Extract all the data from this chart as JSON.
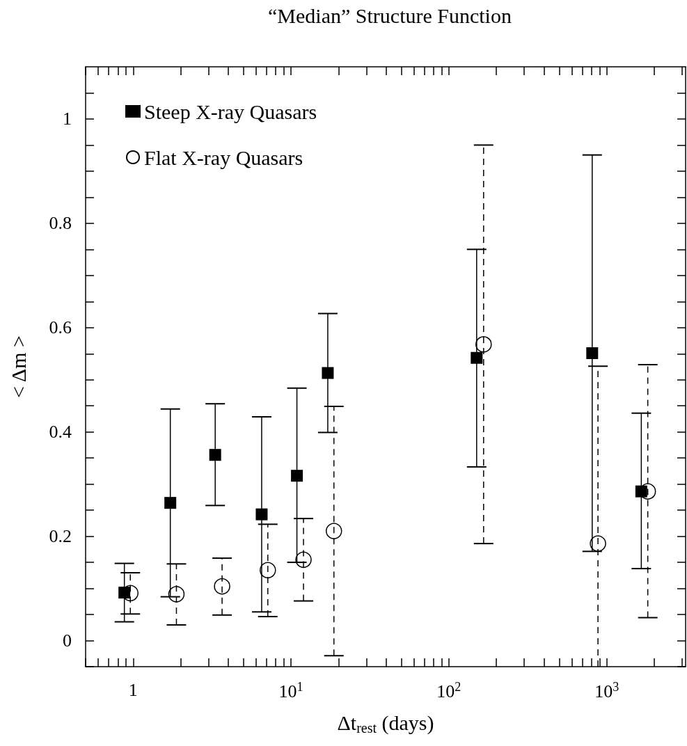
{
  "chart_data": {
    "type": "scatter",
    "title": "“Median” Structure Function",
    "xlabel": "Δt$_{rest}$ (days)",
    "ylabel": "< Δm >",
    "log": "x",
    "xlim": [
      0.5,
      3160
    ],
    "ylim": [
      -0.05,
      1.1
    ],
    "xticks": [
      {
        "value": 0.5,
        "label": null
      },
      {
        "value": 0.6,
        "label": null
      },
      {
        "value": 0.7,
        "label": null
      },
      {
        "value": 0.8,
        "label": null
      },
      {
        "value": 0.9,
        "label": null
      },
      1,
      {
        "value": 2,
        "label": null
      },
      {
        "value": 3,
        "label": null
      },
      {
        "value": 4,
        "label": null
      },
      {
        "value": 5,
        "label": null
      },
      {
        "value": 6,
        "label": null
      },
      {
        "value": 7,
        "label": null
      },
      {
        "value": 8,
        "label": null
      },
      {
        "value": 9,
        "label": null
      },
      {
        "value": 10,
        "label": "10$^{1}$"
      },
      {
        "value": 20,
        "label": null
      },
      {
        "value": 30,
        "label": null
      },
      {
        "value": 40,
        "label": null
      },
      {
        "value": 50,
        "label": null
      },
      {
        "value": 60,
        "label": null
      },
      {
        "value": 70,
        "label": null
      },
      {
        "value": 80,
        "label": null
      },
      {
        "value": 90,
        "label": null
      },
      {
        "value": 100,
        "label": "10$^{2}$"
      },
      {
        "value": 200,
        "label": null
      },
      {
        "value": 300,
        "label": null
      },
      {
        "value": 400,
        "label": null
      },
      {
        "value": 500,
        "label": null
      },
      {
        "value": 600,
        "label": null
      },
      {
        "value": 700,
        "label": null
      },
      {
        "value": 800,
        "label": null
      },
      {
        "value": 900,
        "label": null
      },
      {
        "value": 1000,
        "label": "10$^{3}$"
      },
      {
        "value": 2000,
        "label": null
      },
      {
        "value": 3000,
        "label": null
      }
    ],
    "yticks": [
      {
        "value": -0.05,
        "label": null
      },
      0,
      {
        "value": 0.05,
        "label": null
      },
      {
        "value": 0.1,
        "label": null
      },
      {
        "value": 0.15,
        "label": null
      },
      0.2,
      {
        "value": 0.25,
        "label": null
      },
      {
        "value": 0.3,
        "label": null
      },
      {
        "value": 0.35,
        "label": null
      },
      0.4,
      {
        "value": 0.45,
        "label": null
      },
      {
        "value": 0.5,
        "label": null
      },
      {
        "value": 0.55,
        "label": null
      },
      0.6,
      {
        "value": 0.65,
        "label": null
      },
      {
        "value": 0.7,
        "label": null
      },
      {
        "value": 0.75,
        "label": null
      },
      0.8,
      {
        "value": 0.85,
        "label": null
      },
      {
        "value": 0.9,
        "label": null
      },
      {
        "value": 0.95,
        "label": null
      },
      1,
      {
        "value": 1.05,
        "label": null
      }
    ],
    "grid": false,
    "legend": "top left",
    "series": [
      {
        "name": "Steep X-ray Quasars",
        "color": "#000000",
        "marker": "square",
        "line_style": "solid",
        "x": [
          0.88,
          1.72,
          3.31,
          6.52,
          10.9,
          17.1,
          150,
          809,
          1656
        ],
        "values": [
          0.092,
          0.264,
          0.356,
          0.242,
          0.316,
          0.513,
          0.542,
          0.551,
          0.286
        ],
        "errors": [
          [
            0.036,
            0.148
          ],
          [
            0.084,
            0.444
          ],
          [
            0.259,
            0.454
          ],
          [
            0.055,
            0.429
          ],
          [
            0.15,
            0.484
          ],
          [
            0.399,
            0.627
          ],
          [
            0.333,
            0.75
          ],
          [
            0.171,
            0.931
          ],
          [
            0.138,
            0.436
          ]
        ]
      },
      {
        "name": "Flat X-ray Quasars",
        "color": "#000000",
        "marker": "circle",
        "line_style": "dashed",
        "x": [
          0.96,
          1.88,
          3.66,
          7.13,
          12.0,
          18.7,
          166,
          880,
          1820
        ],
        "values": [
          0.091,
          0.089,
          0.104,
          0.135,
          0.155,
          0.21,
          0.568,
          0.186,
          0.286
        ],
        "errors": [
          [
            0.051,
            0.13
          ],
          [
            0.03,
            0.147
          ],
          [
            0.049,
            0.158
          ],
          [
            0.046,
            0.223
          ],
          [
            0.076,
            0.234
          ],
          [
            -0.029,
            0.449
          ],
          [
            0.186,
            0.95
          ],
          [
            -0.05,
            0.526
          ],
          [
            0.044,
            0.529
          ]
        ]
      }
    ]
  }
}
